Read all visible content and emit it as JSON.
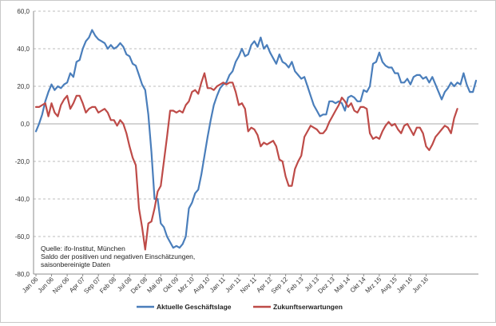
{
  "chart_data": {
    "type": "line",
    "ylim": [
      -80,
      60
    ],
    "y_ticks": [
      "60,0",
      "40,0",
      "20,0",
      "0,0",
      "-20,0",
      "-40,0",
      "-60,0",
      "-80,0"
    ],
    "y_tick_values": [
      60,
      40,
      20,
      0,
      -20,
      -40,
      -60,
      -80
    ],
    "x_tick_labels": [
      "Jan 06",
      "Jun 06",
      "Nov 06",
      "Apr 07",
      "Sep 07",
      "Feb 08",
      "Jul 08",
      "Dez 08",
      "Mai 09",
      "Okt 09",
      "Mrz 10",
      "Aug 10",
      "Jan 11",
      "Jun 11",
      "Nov 11",
      "Apr 12",
      "Sep 12",
      "Feb 13",
      "Jul 13",
      "Dez 13",
      "Mai 14",
      "Okt 14",
      "Mrz 15",
      "Aug 15",
      "Jan 16",
      "Jun 16"
    ],
    "x_start": "Jan 06",
    "grid": true,
    "legend_position": "bottom",
    "annotation": [
      "Quelle: ifo-Institut, München",
      "Saldo der positiven und negativen Einschätzungen,",
      "saisonbereinigte Daten"
    ],
    "series": [
      {
        "name": "Aktuelle Geschäftslage",
        "color": "#4a7ebb",
        "values": [
          -4,
          0,
          5,
          12,
          17,
          21,
          18,
          20,
          19,
          21,
          22,
          27,
          25,
          33,
          34,
          40,
          44,
          46,
          50,
          47,
          45,
          44,
          43,
          40,
          42,
          40,
          41,
          43,
          41,
          37,
          36,
          32,
          31,
          26,
          21,
          18,
          5,
          -15,
          -40,
          -40,
          -53,
          -55,
          -60,
          -63,
          -66,
          -65,
          -66,
          -64,
          -60,
          -45,
          -42,
          -37,
          -35,
          -27,
          -17,
          -7,
          2,
          10,
          15,
          19,
          21,
          22,
          26,
          28,
          33,
          36,
          40,
          36,
          37,
          42,
          44,
          41,
          46,
          40,
          42,
          38,
          35,
          32,
          37,
          33,
          32,
          30,
          33,
          28,
          26,
          24,
          25,
          20,
          15,
          10,
          7,
          4,
          5,
          5,
          12,
          12,
          11,
          12,
          11,
          7,
          14,
          15,
          14,
          12,
          12,
          18,
          17,
          20,
          32,
          33,
          38,
          33,
          31,
          30,
          30,
          27,
          27,
          22,
          22,
          24,
          21,
          25,
          26,
          26,
          24,
          25,
          22,
          25,
          21,
          17,
          13,
          17,
          19,
          22,
          20,
          22,
          21,
          27,
          21,
          17,
          17,
          23
        ]
      },
      {
        "name": "Zukunftserwartungen",
        "color": "#be4b48",
        "values": [
          9,
          9,
          10,
          11,
          4,
          11,
          6,
          4,
          10,
          13,
          15,
          8,
          11,
          15,
          15,
          11,
          6,
          8,
          9,
          9,
          6,
          7,
          8,
          6,
          2,
          2,
          -1,
          2,
          0,
          -5,
          -12,
          -18,
          -22,
          -45,
          -55,
          -67,
          -53,
          -52,
          -45,
          -36,
          -33,
          -20,
          -7,
          7,
          7,
          6,
          7,
          6,
          10,
          12,
          17,
          18,
          16,
          22,
          27,
          19,
          19,
          18,
          20,
          21,
          22,
          21,
          22,
          22,
          17,
          10,
          11,
          8,
          -4,
          -2,
          -3,
          -6,
          -12,
          -10,
          -11,
          -10,
          -9,
          -12,
          -19,
          -20,
          -28,
          -33,
          -33,
          -24,
          -20,
          -17,
          -7,
          -4,
          -1,
          -2,
          -3,
          -5,
          -5,
          -3,
          1,
          4,
          7,
          10,
          14,
          12,
          9,
          11,
          7,
          6,
          9,
          9,
          8,
          -5,
          -8,
          -7,
          -8,
          -4,
          -1,
          1,
          -1,
          0,
          -3,
          -5,
          -1,
          0,
          -3,
          -6,
          -2,
          -2,
          -5,
          -12,
          -14,
          -11,
          -7,
          -5,
          -3,
          -1,
          -2,
          -5,
          3,
          8
        ]
      }
    ]
  }
}
